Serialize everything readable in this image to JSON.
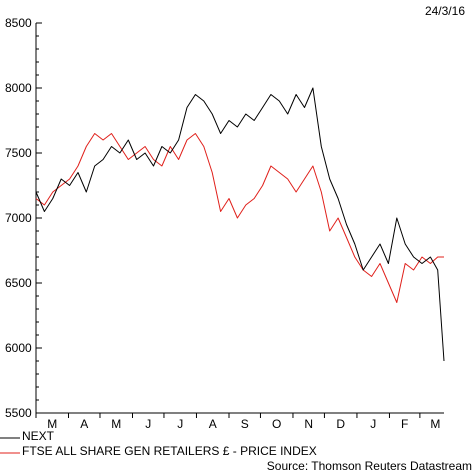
{
  "chart_data": {
    "type": "line",
    "date_label": "24/3/16",
    "source": "Source: Thomson Reuters Datastream",
    "ylim": [
      5500,
      8500
    ],
    "y_ticks": [
      5500,
      6000,
      6500,
      7000,
      7500,
      8000,
      8500
    ],
    "x_range": [
      "2015-03-01",
      "2016-03-24"
    ],
    "x_ticks": [
      {
        "label": "M",
        "date": "2015-03-01"
      },
      {
        "label": "A",
        "date": "2015-04-01"
      },
      {
        "label": "M",
        "date": "2015-05-01"
      },
      {
        "label": "J",
        "date": "2015-06-01"
      },
      {
        "label": "J",
        "date": "2015-07-01"
      },
      {
        "label": "A",
        "date": "2015-08-01"
      },
      {
        "label": "S",
        "date": "2015-09-01"
      },
      {
        "label": "O",
        "date": "2015-10-01"
      },
      {
        "label": "N",
        "date": "2015-11-01"
      },
      {
        "label": "D",
        "date": "2015-12-01"
      },
      {
        "label": "J",
        "date": "2016-01-01"
      },
      {
        "label": "F",
        "date": "2016-02-01"
      },
      {
        "label": "M",
        "date": "2016-03-01"
      }
    ],
    "legend_position": "bottom-left",
    "series": [
      {
        "name": "NEXT",
        "color": "#000000",
        "points": [
          [
            "2015-03-01",
            7200
          ],
          [
            "2015-03-09",
            7050
          ],
          [
            "2015-03-17",
            7150
          ],
          [
            "2015-03-25",
            7300
          ],
          [
            "2015-04-02",
            7250
          ],
          [
            "2015-04-10",
            7350
          ],
          [
            "2015-04-18",
            7200
          ],
          [
            "2015-04-26",
            7400
          ],
          [
            "2015-05-04",
            7450
          ],
          [
            "2015-05-12",
            7550
          ],
          [
            "2015-05-20",
            7500
          ],
          [
            "2015-05-28",
            7600
          ],
          [
            "2015-06-05",
            7450
          ],
          [
            "2015-06-13",
            7500
          ],
          [
            "2015-06-21",
            7400
          ],
          [
            "2015-06-29",
            7550
          ],
          [
            "2015-07-07",
            7500
          ],
          [
            "2015-07-15",
            7600
          ],
          [
            "2015-07-23",
            7850
          ],
          [
            "2015-07-31",
            7950
          ],
          [
            "2015-08-08",
            7900
          ],
          [
            "2015-08-16",
            7800
          ],
          [
            "2015-08-24",
            7650
          ],
          [
            "2015-09-01",
            7750
          ],
          [
            "2015-09-09",
            7700
          ],
          [
            "2015-09-17",
            7800
          ],
          [
            "2015-09-25",
            7750
          ],
          [
            "2015-10-03",
            7850
          ],
          [
            "2015-10-11",
            7950
          ],
          [
            "2015-10-19",
            7900
          ],
          [
            "2015-10-27",
            7800
          ],
          [
            "2015-11-04",
            7950
          ],
          [
            "2015-11-12",
            7850
          ],
          [
            "2015-11-20",
            8000
          ],
          [
            "2015-11-28",
            7550
          ],
          [
            "2015-12-06",
            7300
          ],
          [
            "2015-12-14",
            7150
          ],
          [
            "2015-12-22",
            6950
          ],
          [
            "2015-12-30",
            6800
          ],
          [
            "2016-01-07",
            6600
          ],
          [
            "2016-01-15",
            6700
          ],
          [
            "2016-01-23",
            6800
          ],
          [
            "2016-01-31",
            6650
          ],
          [
            "2016-02-08",
            7000
          ],
          [
            "2016-02-16",
            6800
          ],
          [
            "2016-02-24",
            6700
          ],
          [
            "2016-03-03",
            6650
          ],
          [
            "2016-03-11",
            6700
          ],
          [
            "2016-03-18",
            6600
          ],
          [
            "2016-03-24",
            5900
          ]
        ]
      },
      {
        "name": "FTSE ALL SHARE GEN RETAILERS £ - PRICE INDEX",
        "color": "#e0201b",
        "points": [
          [
            "2015-03-01",
            7150
          ],
          [
            "2015-03-09",
            7100
          ],
          [
            "2015-03-17",
            7200
          ],
          [
            "2015-03-25",
            7250
          ],
          [
            "2015-04-02",
            7300
          ],
          [
            "2015-04-10",
            7400
          ],
          [
            "2015-04-18",
            7550
          ],
          [
            "2015-04-26",
            7650
          ],
          [
            "2015-05-04",
            7600
          ],
          [
            "2015-05-12",
            7650
          ],
          [
            "2015-05-20",
            7550
          ],
          [
            "2015-05-28",
            7450
          ],
          [
            "2015-06-05",
            7500
          ],
          [
            "2015-06-13",
            7550
          ],
          [
            "2015-06-21",
            7450
          ],
          [
            "2015-06-29",
            7400
          ],
          [
            "2015-07-07",
            7550
          ],
          [
            "2015-07-15",
            7450
          ],
          [
            "2015-07-23",
            7600
          ],
          [
            "2015-07-31",
            7650
          ],
          [
            "2015-08-08",
            7550
          ],
          [
            "2015-08-16",
            7350
          ],
          [
            "2015-08-24",
            7050
          ],
          [
            "2015-09-01",
            7150
          ],
          [
            "2015-09-09",
            7000
          ],
          [
            "2015-09-17",
            7100
          ],
          [
            "2015-09-25",
            7150
          ],
          [
            "2015-10-03",
            7250
          ],
          [
            "2015-10-11",
            7400
          ],
          [
            "2015-10-19",
            7350
          ],
          [
            "2015-10-27",
            7300
          ],
          [
            "2015-11-04",
            7200
          ],
          [
            "2015-11-12",
            7300
          ],
          [
            "2015-11-20",
            7400
          ],
          [
            "2015-11-28",
            7200
          ],
          [
            "2015-12-06",
            6900
          ],
          [
            "2015-12-14",
            7000
          ],
          [
            "2015-12-22",
            6850
          ],
          [
            "2015-12-30",
            6700
          ],
          [
            "2016-01-07",
            6600
          ],
          [
            "2016-01-15",
            6550
          ],
          [
            "2016-01-23",
            6650
          ],
          [
            "2016-01-31",
            6500
          ],
          [
            "2016-02-08",
            6350
          ],
          [
            "2016-02-16",
            6650
          ],
          [
            "2016-02-24",
            6600
          ],
          [
            "2016-03-03",
            6700
          ],
          [
            "2016-03-11",
            6650
          ],
          [
            "2016-03-18",
            6700
          ],
          [
            "2016-03-24",
            6700
          ]
        ]
      }
    ]
  }
}
